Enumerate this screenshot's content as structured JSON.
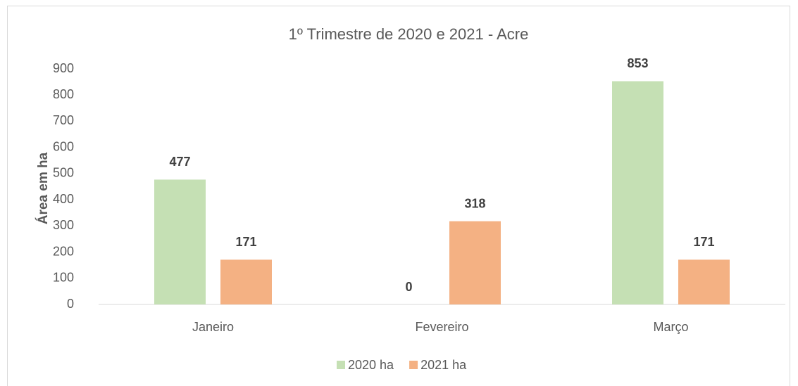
{
  "chart_data": {
    "type": "bar",
    "title": "1º Trimestre  de 2020 e 2021 - Acre",
    "y_label": "Área em ha",
    "categories": [
      "Janeiro",
      "Fevereiro",
      "Março"
    ],
    "series": [
      {
        "name": "2020 ha",
        "color": "#c5e0b4",
        "values": [
          477,
          0,
          853
        ]
      },
      {
        "name": "2021 ha",
        "color": "#f4b183",
        "values": [
          171,
          318,
          171
        ]
      }
    ],
    "ylim": [
      0,
      900
    ],
    "yticks": [
      0,
      100,
      200,
      300,
      400,
      500,
      600,
      700,
      800,
      900
    ],
    "grid": false,
    "legend": "bottom",
    "data_labels": true
  }
}
